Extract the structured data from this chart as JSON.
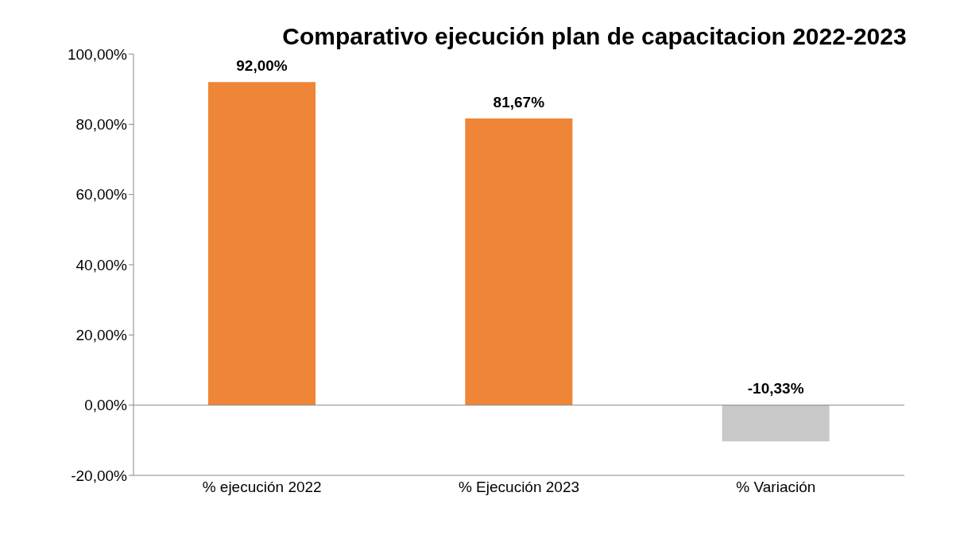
{
  "chart_data": {
    "type": "bar",
    "title": "Comparativo ejecución plan de capacitacion 2022-2023",
    "categories": [
      "% ejecución 2022",
      "% Ejecución 2023",
      "% Variación"
    ],
    "values": [
      92,
      81.67,
      -10.33
    ],
    "colors": [
      "#ef8536",
      "#ef8536",
      "#c8c8c8"
    ],
    "value_labels": [
      "92,00%",
      "81,67%",
      "-10,33%"
    ],
    "ylim": [
      -20,
      100
    ],
    "yticks": [
      {
        "value": -20,
        "label": "-20,00%"
      },
      {
        "value": 0,
        "label": "0,00%"
      },
      {
        "value": 20,
        "label": "20,00%"
      },
      {
        "value": 40,
        "label": "40,00%"
      },
      {
        "value": 60,
        "label": "60,00%"
      },
      {
        "value": 80,
        "label": "80,00%"
      },
      {
        "value": 100,
        "label": "100,00%"
      }
    ],
    "ref_lines": [
      {
        "axis": "y",
        "value": 0,
        "color": "#888888"
      }
    ],
    "grid": false,
    "legend": false
  }
}
